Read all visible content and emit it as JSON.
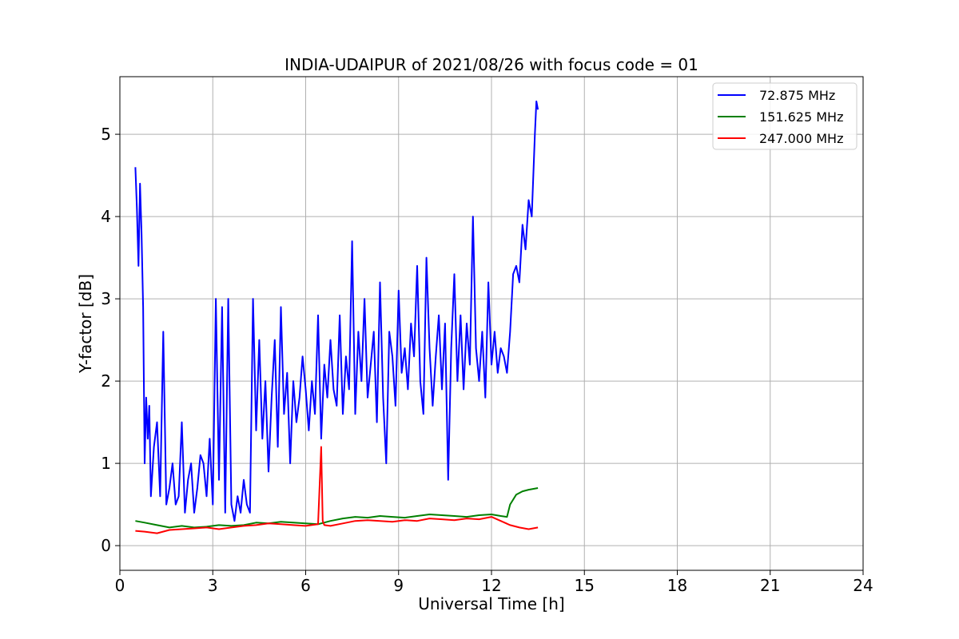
{
  "chart_data": {
    "type": "line",
    "title": "INDIA-UDAIPUR of 2021/08/26 with focus code = 01",
    "xlabel": "Universal Time [h]",
    "ylabel": "Y-factor [dB]",
    "xlim": [
      0,
      24
    ],
    "ylim": [
      -0.3,
      5.7
    ],
    "xticks": [
      0,
      3,
      6,
      9,
      12,
      15,
      18,
      21,
      24
    ],
    "xtick_labels": [
      "0",
      "3",
      "6",
      "9",
      "12",
      "15",
      "18",
      "21",
      "24"
    ],
    "yticks": [
      0,
      1,
      2,
      3,
      4,
      5
    ],
    "ytick_labels": [
      "0",
      "1",
      "2",
      "3",
      "4",
      "5"
    ],
    "grid": true,
    "legend_position": "top-right",
    "series": [
      {
        "name": " 72.875 MHz",
        "color": "#0000ff",
        "x": [
          0.5,
          0.55,
          0.6,
          0.65,
          0.7,
          0.75,
          0.8,
          0.85,
          0.9,
          0.95,
          1.0,
          1.1,
          1.2,
          1.3,
          1.4,
          1.5,
          1.6,
          1.7,
          1.8,
          1.9,
          2.0,
          2.1,
          2.2,
          2.3,
          2.4,
          2.5,
          2.6,
          2.7,
          2.8,
          2.9,
          3.0,
          3.1,
          3.2,
          3.3,
          3.4,
          3.5,
          3.6,
          3.7,
          3.8,
          3.9,
          4.0,
          4.1,
          4.2,
          4.3,
          4.4,
          4.5,
          4.6,
          4.7,
          4.8,
          4.9,
          5.0,
          5.1,
          5.2,
          5.3,
          5.4,
          5.5,
          5.6,
          5.7,
          5.8,
          5.9,
          6.0,
          6.1,
          6.2,
          6.3,
          6.4,
          6.5,
          6.6,
          6.7,
          6.8,
          6.9,
          7.0,
          7.1,
          7.2,
          7.3,
          7.4,
          7.5,
          7.6,
          7.7,
          7.8,
          7.9,
          8.0,
          8.1,
          8.2,
          8.3,
          8.4,
          8.5,
          8.6,
          8.7,
          8.8,
          8.9,
          9.0,
          9.1,
          9.2,
          9.3,
          9.4,
          9.5,
          9.6,
          9.7,
          9.8,
          9.9,
          10.0,
          10.1,
          10.2,
          10.3,
          10.4,
          10.5,
          10.6,
          10.7,
          10.8,
          10.9,
          11.0,
          11.1,
          11.2,
          11.3,
          11.4,
          11.5,
          11.6,
          11.7,
          11.8,
          11.9,
          12.0,
          12.1,
          12.2,
          12.3,
          12.4,
          12.5,
          12.6,
          12.7,
          12.8,
          12.9,
          13.0,
          13.1,
          13.2,
          13.3,
          13.4,
          13.45,
          13.5
        ],
        "y": [
          4.6,
          4.1,
          3.4,
          4.4,
          3.8,
          2.9,
          1.0,
          1.8,
          1.3,
          1.7,
          0.6,
          1.2,
          1.5,
          0.6,
          2.6,
          0.5,
          0.7,
          1.0,
          0.5,
          0.6,
          1.5,
          0.4,
          0.8,
          1.0,
          0.4,
          0.7,
          1.1,
          1.0,
          0.6,
          1.3,
          0.5,
          3.0,
          0.8,
          2.9,
          0.4,
          3.0,
          0.5,
          0.3,
          0.6,
          0.4,
          0.8,
          0.5,
          0.4,
          3.0,
          1.4,
          2.5,
          1.3,
          2.0,
          0.9,
          1.8,
          2.5,
          1.2,
          2.9,
          1.6,
          2.1,
          1.0,
          2.0,
          1.5,
          1.8,
          2.3,
          1.9,
          1.4,
          2.0,
          1.6,
          2.8,
          1.3,
          2.2,
          1.8,
          2.5,
          1.9,
          1.7,
          2.8,
          1.6,
          2.3,
          1.9,
          3.7,
          1.6,
          2.6,
          2.0,
          3.0,
          1.8,
          2.2,
          2.6,
          1.5,
          3.2,
          1.8,
          1.0,
          2.6,
          2.3,
          1.7,
          3.1,
          2.1,
          2.4,
          1.9,
          2.7,
          2.3,
          3.4,
          2.0,
          1.6,
          3.5,
          2.4,
          1.7,
          2.3,
          2.8,
          1.9,
          2.7,
          0.8,
          2.4,
          3.3,
          2.0,
          2.8,
          1.9,
          2.7,
          2.2,
          4.0,
          2.4,
          2.0,
          2.6,
          1.8,
          3.2,
          2.2,
          2.6,
          2.1,
          2.4,
          2.3,
          2.1,
          2.6,
          3.3,
          3.4,
          3.2,
          3.9,
          3.6,
          4.2,
          4.0,
          5.0,
          5.4,
          5.3
        ]
      },
      {
        "name": "151.625 MHz",
        "color": "#008000",
        "x": [
          0.5,
          0.8,
          1.2,
          1.6,
          2.0,
          2.4,
          2.8,
          3.2,
          3.6,
          4.0,
          4.4,
          4.8,
          5.2,
          5.6,
          6.0,
          6.4,
          6.8,
          7.2,
          7.6,
          8.0,
          8.4,
          8.8,
          9.2,
          9.6,
          10.0,
          10.4,
          10.8,
          11.2,
          11.6,
          12.0,
          12.3,
          12.5,
          12.6,
          12.8,
          13.0,
          13.2,
          13.5
        ],
        "y": [
          0.3,
          0.28,
          0.25,
          0.22,
          0.24,
          0.22,
          0.23,
          0.25,
          0.24,
          0.25,
          0.28,
          0.27,
          0.29,
          0.28,
          0.27,
          0.26,
          0.3,
          0.33,
          0.35,
          0.34,
          0.36,
          0.35,
          0.34,
          0.36,
          0.38,
          0.37,
          0.36,
          0.35,
          0.37,
          0.38,
          0.36,
          0.35,
          0.5,
          0.62,
          0.66,
          0.68,
          0.7
        ]
      },
      {
        "name": "247.000 MHz",
        "color": "#ff0000",
        "x": [
          0.5,
          0.8,
          1.2,
          1.6,
          2.0,
          2.4,
          2.8,
          3.2,
          3.6,
          4.0,
          4.4,
          4.8,
          5.2,
          5.6,
          6.0,
          6.4,
          6.5,
          6.55,
          6.6,
          6.8,
          7.2,
          7.6,
          8.0,
          8.4,
          8.8,
          9.2,
          9.6,
          10.0,
          10.4,
          10.8,
          11.2,
          11.6,
          12.0,
          12.3,
          12.6,
          12.9,
          13.2,
          13.5
        ],
        "y": [
          0.18,
          0.17,
          0.15,
          0.19,
          0.2,
          0.21,
          0.22,
          0.2,
          0.22,
          0.24,
          0.25,
          0.27,
          0.26,
          0.25,
          0.24,
          0.26,
          1.2,
          0.3,
          0.25,
          0.24,
          0.27,
          0.3,
          0.31,
          0.3,
          0.29,
          0.31,
          0.3,
          0.33,
          0.32,
          0.31,
          0.33,
          0.32,
          0.35,
          0.3,
          0.25,
          0.22,
          0.2,
          0.22
        ]
      }
    ]
  }
}
